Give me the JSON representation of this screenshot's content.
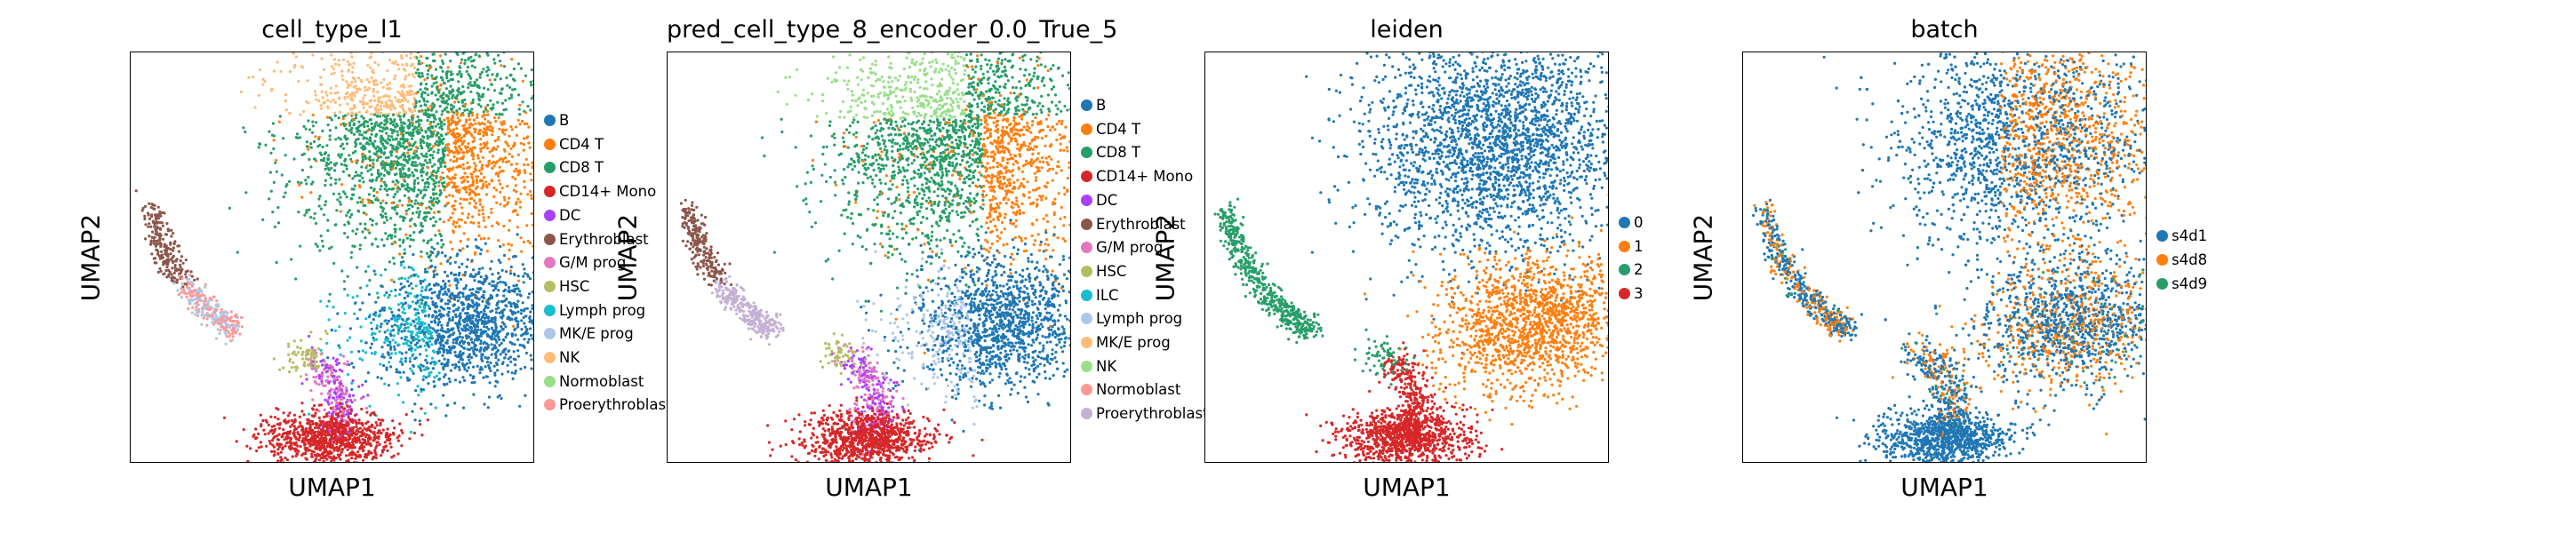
{
  "chart_data": [
    {
      "type": "scatter",
      "title": "cell_type_l1",
      "xlabel": "UMAP1",
      "ylabel": "UMAP2",
      "legend_placement": "right",
      "grid": false,
      "categories": [
        {
          "label": "B",
          "color": "#1f77b4"
        },
        {
          "label": "CD4 T",
          "color": "#ff7f0e"
        },
        {
          "label": "CD8 T",
          "color": "#279e68"
        },
        {
          "label": "CD14+ Mono",
          "color": "#d62728"
        },
        {
          "label": "DC",
          "color": "#aa40fc"
        },
        {
          "label": "Erythroblast",
          "color": "#8c564b"
        },
        {
          "label": "G/M prog",
          "color": "#e377c2"
        },
        {
          "label": "HSC",
          "color": "#b5bd61"
        },
        {
          "label": "Lymph prog",
          "color": "#17becf"
        },
        {
          "label": "MK/E prog",
          "color": "#aec7e8"
        },
        {
          "label": "NK",
          "color": "#ffbb78"
        },
        {
          "label": "Normoblast",
          "color": "#98df8a"
        },
        {
          "label": "Proerythroblast",
          "color": "#ff9896"
        }
      ]
    },
    {
      "type": "scatter",
      "title": "pred_cell_type_8_encoder_0.0_True_5",
      "xlabel": "UMAP1",
      "ylabel": "UMAP2",
      "legend_placement": "right",
      "grid": false,
      "categories": [
        {
          "label": "B",
          "color": "#1f77b4"
        },
        {
          "label": "CD4 T",
          "color": "#ff7f0e"
        },
        {
          "label": "CD8 T",
          "color": "#279e68"
        },
        {
          "label": "CD14+ Mono",
          "color": "#d62728"
        },
        {
          "label": "DC",
          "color": "#aa40fc"
        },
        {
          "label": "Erythroblast",
          "color": "#8c564b"
        },
        {
          "label": "G/M prog",
          "color": "#e377c2"
        },
        {
          "label": "HSC",
          "color": "#b5bd61"
        },
        {
          "label": "ILC",
          "color": "#17becf"
        },
        {
          "label": "Lymph prog",
          "color": "#aec7e8"
        },
        {
          "label": "MK/E prog",
          "color": "#ffbb78"
        },
        {
          "label": "NK",
          "color": "#98df8a"
        },
        {
          "label": "Normoblast",
          "color": "#ff9896"
        },
        {
          "label": "Proerythroblast",
          "color": "#c5b0d5"
        }
      ]
    },
    {
      "type": "scatter",
      "title": "leiden",
      "xlabel": "UMAP1",
      "ylabel": "UMAP2",
      "legend_placement": "right",
      "grid": false,
      "categories": [
        {
          "label": "0",
          "color": "#1f77b4"
        },
        {
          "label": "1",
          "color": "#ff7f0e"
        },
        {
          "label": "2",
          "color": "#279e68"
        },
        {
          "label": "3",
          "color": "#d62728"
        }
      ]
    },
    {
      "type": "scatter",
      "title": "batch",
      "xlabel": "UMAP1",
      "ylabel": "UMAP2",
      "legend_placement": "right",
      "grid": false,
      "categories": [
        {
          "label": "s4d1",
          "color": "#1f77b4"
        },
        {
          "label": "s4d8",
          "color": "#ff7f0e"
        },
        {
          "label": "s4d9",
          "color": "#279e68"
        }
      ]
    }
  ]
}
